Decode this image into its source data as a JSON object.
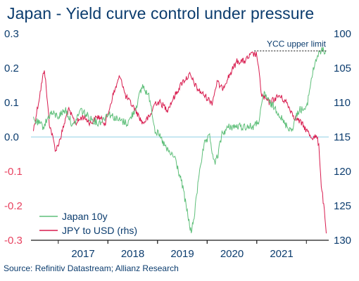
{
  "title": "Japan - Yield curve control under pressure",
  "source": "Source: Refinitiv Datastream; Allianz Research",
  "colors": {
    "japan_10y": "#5fbf7a",
    "jpy_usd": "#d81b4e",
    "axis_text": "#0b3c6e",
    "zero_line": "#8fcfe6",
    "left_negative": "#e8415f"
  },
  "chart_data": {
    "type": "line",
    "title": "Japan - Yield curve control under pressure",
    "x_ticks": [
      "2017",
      "2018",
      "2019",
      "2020",
      "2021"
    ],
    "y_left": {
      "min": -0.3,
      "max": 0.3,
      "ticks": [
        "0.3",
        "0.2",
        "0.1",
        "0.0",
        "-0.1",
        "-0.2",
        "-0.3"
      ]
    },
    "y_right": {
      "min": 100,
      "max": 130,
      "inverted": true,
      "ticks": [
        "100",
        "105",
        "110",
        "115",
        "120",
        "125",
        "130"
      ]
    },
    "legend": {
      "position": "bottom-left",
      "entries": [
        "Japan 10y",
        "JPY to USD (rhs)"
      ]
    },
    "annotation": {
      "text": "YCC upper limit",
      "value": 0.25
    },
    "series": [
      {
        "name": "Japan 10y",
        "axis": "left",
        "points": [
          [
            2016.5,
            0.05
          ],
          [
            2016.7,
            0.03
          ],
          [
            2016.85,
            0.07
          ],
          [
            2017.0,
            0.06
          ],
          [
            2017.15,
            0.08
          ],
          [
            2017.3,
            0.03
          ],
          [
            2017.45,
            0.08
          ],
          [
            2017.6,
            0.06
          ],
          [
            2017.8,
            0.04
          ],
          [
            2017.9,
            0.05
          ],
          [
            2018.0,
            0.07
          ],
          [
            2018.2,
            0.05
          ],
          [
            2018.4,
            0.04
          ],
          [
            2018.55,
            0.08
          ],
          [
            2018.7,
            0.15
          ],
          [
            2018.85,
            0.11
          ],
          [
            2018.95,
            0.02
          ],
          [
            2019.05,
            0.0
          ],
          [
            2019.2,
            -0.04
          ],
          [
            2019.35,
            -0.06
          ],
          [
            2019.5,
            -0.14
          ],
          [
            2019.6,
            -0.22
          ],
          [
            2019.68,
            -0.28
          ],
          [
            2019.75,
            -0.22
          ],
          [
            2019.85,
            -0.09
          ],
          [
            2019.95,
            -0.02
          ],
          [
            2020.05,
            0.0
          ],
          [
            2020.15,
            -0.08
          ],
          [
            2020.22,
            -0.05
          ],
          [
            2020.3,
            0.01
          ],
          [
            2020.45,
            0.03
          ],
          [
            2020.6,
            0.03
          ],
          [
            2020.8,
            0.03
          ],
          [
            2020.95,
            0.03
          ],
          [
            2021.05,
            0.05
          ],
          [
            2021.15,
            0.13
          ],
          [
            2021.25,
            0.1
          ],
          [
            2021.4,
            0.08
          ],
          [
            2021.55,
            0.04
          ],
          [
            2021.7,
            0.02
          ],
          [
            2021.85,
            0.08
          ],
          [
            2022.0,
            0.08
          ],
          [
            2022.1,
            0.17
          ],
          [
            2022.2,
            0.23
          ],
          [
            2022.3,
            0.25
          ],
          [
            2022.4,
            0.25
          ]
        ]
      },
      {
        "name": "JPY to USD (rhs)",
        "axis": "right",
        "points": [
          [
            2016.5,
            114
          ],
          [
            2016.6,
            110
          ],
          [
            2016.72,
            105
          ],
          [
            2016.82,
            113
          ],
          [
            2016.95,
            117
          ],
          [
            2017.05,
            115
          ],
          [
            2017.2,
            111
          ],
          [
            2017.35,
            113
          ],
          [
            2017.5,
            112
          ],
          [
            2017.65,
            113
          ],
          [
            2017.8,
            112
          ],
          [
            2017.95,
            113
          ],
          [
            2018.1,
            109
          ],
          [
            2018.25,
            106
          ],
          [
            2018.35,
            109
          ],
          [
            2018.55,
            111
          ],
          [
            2018.7,
            113
          ],
          [
            2018.85,
            112
          ],
          [
            2018.95,
            110
          ],
          [
            2019.05,
            110
          ],
          [
            2019.2,
            111
          ],
          [
            2019.35,
            109
          ],
          [
            2019.5,
            107
          ],
          [
            2019.65,
            106
          ],
          [
            2019.8,
            108
          ],
          [
            2019.95,
            109
          ],
          [
            2020.1,
            110
          ],
          [
            2020.2,
            107
          ],
          [
            2020.3,
            108
          ],
          [
            2020.45,
            106
          ],
          [
            2020.6,
            104
          ],
          [
            2020.75,
            104
          ],
          [
            2020.9,
            103
          ],
          [
            2021.0,
            103
          ],
          [
            2021.1,
            109
          ],
          [
            2021.25,
            110
          ],
          [
            2021.45,
            109
          ],
          [
            2021.6,
            110
          ],
          [
            2021.75,
            112
          ],
          [
            2021.9,
            113
          ],
          [
            2022.0,
            114
          ],
          [
            2022.1,
            115
          ],
          [
            2022.2,
            115
          ],
          [
            2022.25,
            116
          ],
          [
            2022.3,
            122
          ],
          [
            2022.35,
            125
          ],
          [
            2022.4,
            129
          ]
        ]
      }
    ]
  }
}
